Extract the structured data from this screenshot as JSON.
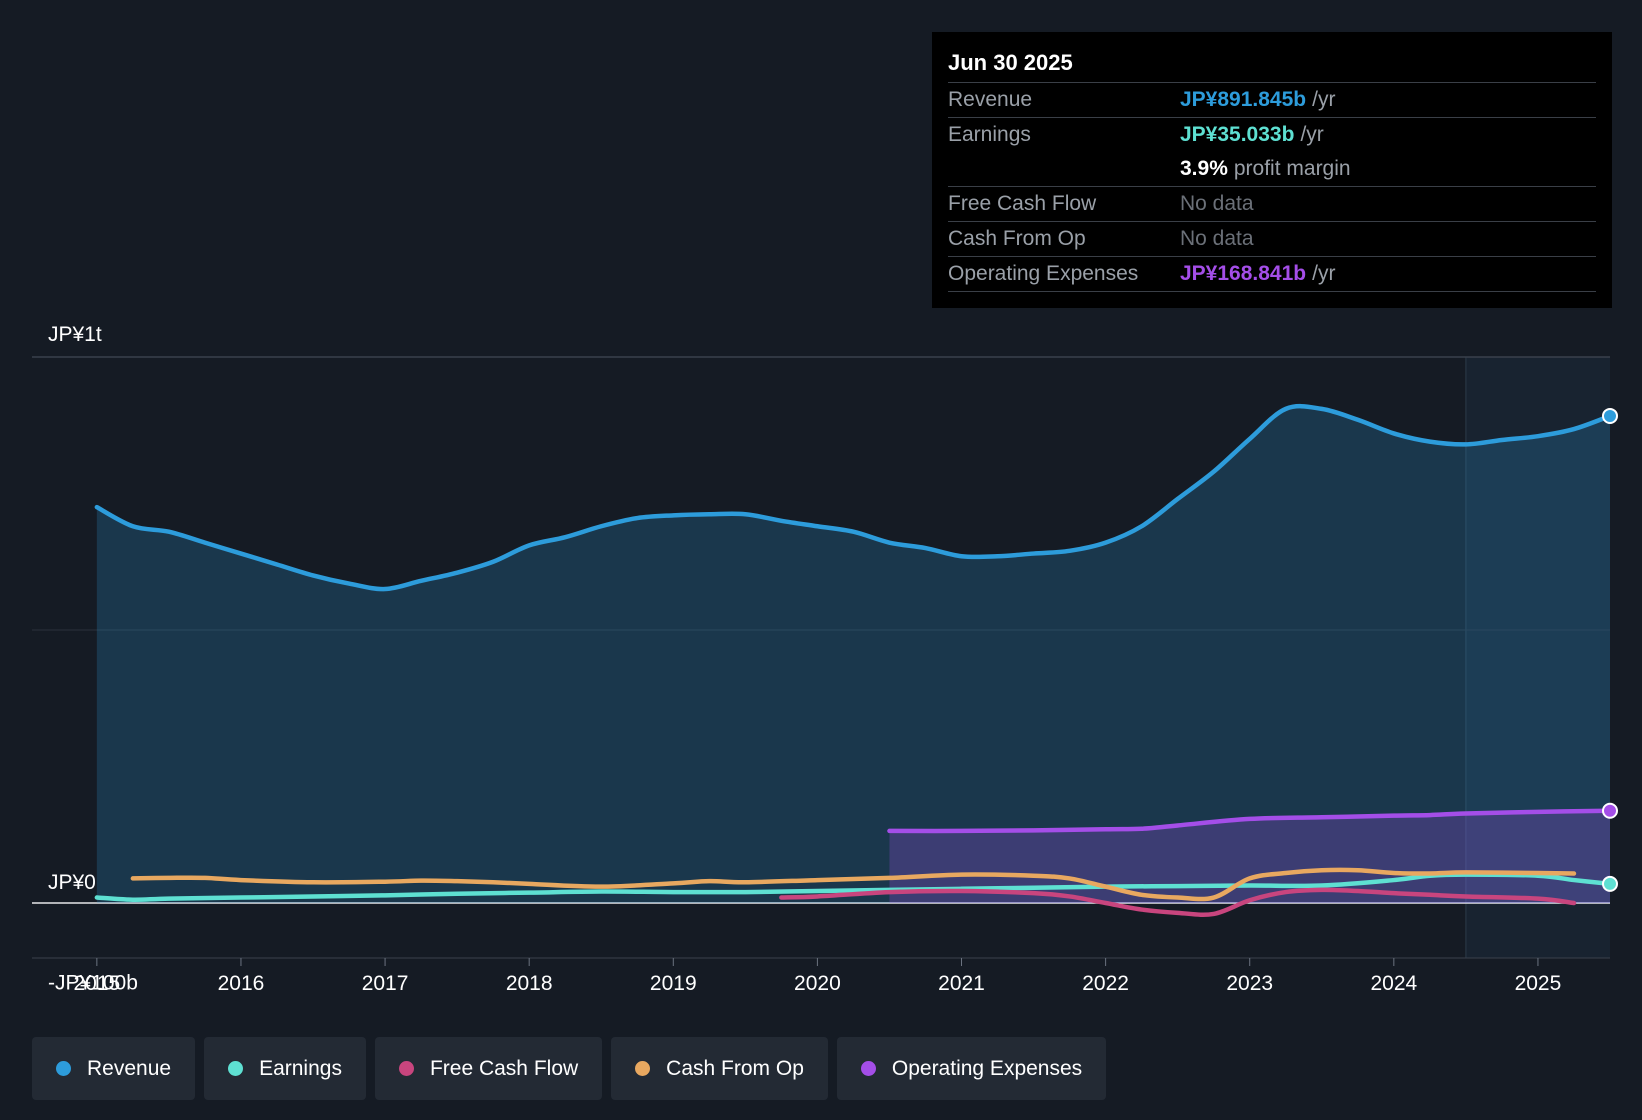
{
  "tooltip": {
    "date": "Jun 30 2025",
    "rows": [
      {
        "label": "Revenue",
        "value": "JP¥891.845b",
        "unit": "/yr",
        "color": "#2d9cdb"
      },
      {
        "label": "Earnings",
        "value": "JP¥35.033b",
        "unit": "/yr",
        "color": "#5ee0d2"
      },
      {
        "label": "",
        "value": "3.9%",
        "unit": "profit margin",
        "color": "#ffffff"
      },
      {
        "label": "Free Cash Flow",
        "value": "No data"
      },
      {
        "label": "Cash From Op",
        "value": "No data"
      },
      {
        "label": "Operating Expenses",
        "value": "JP¥168.841b",
        "unit": "/yr",
        "color": "#a44ee8"
      }
    ]
  },
  "legend": [
    {
      "label": "Revenue",
      "color": "#2d9cdb"
    },
    {
      "label": "Earnings",
      "color": "#5ee0d2"
    },
    {
      "label": "Free Cash Flow",
      "color": "#c8457e"
    },
    {
      "label": "Cash From Op",
      "color": "#e8a860"
    },
    {
      "label": "Operating Expenses",
      "color": "#a44ee8"
    }
  ],
  "chart_data": {
    "type": "line",
    "title": "",
    "xlabel": "",
    "ylabel": "",
    "ylim": [
      -100,
      1000
    ],
    "y_unit": "JP¥ billions",
    "y_tick_labels": [
      "JP¥1t",
      "JP¥0",
      "-JP¥100b"
    ],
    "y_tick_values": [
      1000,
      0,
      -100
    ],
    "x_ticks": [
      "2015",
      "2016",
      "2017",
      "2018",
      "2019",
      "2020",
      "2021",
      "2022",
      "2023",
      "2024",
      "2025"
    ],
    "x_tick_values": [
      2015,
      2016,
      2017,
      2018,
      2019,
      2020,
      2021,
      2022,
      2023,
      2024,
      2025
    ],
    "xlim": [
      2014.55,
      2025.5
    ],
    "forecast_start": 2024.5,
    "series": [
      {
        "name": "Revenue",
        "color": "#2d9cdb",
        "fill": true,
        "x": [
          2015.0,
          2015.25,
          2015.5,
          2015.75,
          2016.0,
          2016.25,
          2016.5,
          2016.75,
          2017.0,
          2017.25,
          2017.5,
          2017.75,
          2018.0,
          2018.25,
          2018.5,
          2018.75,
          2019.0,
          2019.25,
          2019.5,
          2019.75,
          2020.0,
          2020.25,
          2020.5,
          2020.75,
          2021.0,
          2021.25,
          2021.5,
          2021.75,
          2022.0,
          2022.25,
          2022.5,
          2022.75,
          2023.0,
          2023.25,
          2023.5,
          2023.75,
          2024.0,
          2024.25,
          2024.5,
          2024.75,
          2025.0,
          2025.25,
          2025.5
        ],
        "values": [
          725,
          690,
          680,
          660,
          640,
          620,
          600,
          585,
          575,
          590,
          605,
          625,
          655,
          670,
          690,
          705,
          710,
          712,
          712,
          700,
          690,
          680,
          660,
          650,
          635,
          635,
          640,
          645,
          660,
          690,
          740,
          790,
          850,
          905,
          905,
          885,
          860,
          845,
          840,
          848,
          855,
          868,
          892
        ]
      },
      {
        "name": "Earnings",
        "color": "#5ee0d2",
        "fill": false,
        "x": [
          2015.0,
          2015.25,
          2015.5,
          2016.0,
          2016.5,
          2017.0,
          2017.5,
          2018.0,
          2018.5,
          2019.0,
          2019.5,
          2020.0,
          2020.5,
          2021.0,
          2021.5,
          2022.0,
          2022.5,
          2023.0,
          2023.5,
          2024.0,
          2024.25,
          2024.5,
          2025.0,
          2025.25,
          2025.5
        ],
        "values": [
          10,
          6,
          8,
          10,
          12,
          14,
          17,
          19,
          21,
          20,
          20,
          22,
          24,
          26,
          28,
          30,
          31,
          32,
          32,
          42,
          50,
          52,
          50,
          42,
          35
        ]
      },
      {
        "name": "Free Cash Flow",
        "color": "#c8457e",
        "fill": false,
        "x": [
          2019.75,
          2020.0,
          2020.5,
          2021.0,
          2021.5,
          2021.75,
          2022.0,
          2022.25,
          2022.5,
          2022.75,
          2023.0,
          2023.25,
          2023.5,
          2023.75,
          2024.0,
          2024.25,
          2024.5,
          2025.0,
          2025.25
        ],
        "values": [
          10,
          12,
          20,
          22,
          18,
          12,
          0,
          -12,
          -18,
          -20,
          5,
          20,
          24,
          22,
          18,
          15,
          12,
          8,
          0
        ]
      },
      {
        "name": "Cash From Op",
        "color": "#e8a860",
        "fill": false,
        "x": [
          2015.25,
          2015.5,
          2015.75,
          2016.0,
          2016.5,
          2017.0,
          2017.25,
          2017.5,
          2017.75,
          2018.0,
          2018.5,
          2019.0,
          2019.25,
          2019.5,
          2020.0,
          2020.5,
          2021.0,
          2021.5,
          2021.75,
          2022.0,
          2022.25,
          2022.5,
          2022.75,
          2023.0,
          2023.25,
          2023.5,
          2023.75,
          2024.0,
          2024.25,
          2024.5,
          2025.0,
          2025.25
        ],
        "values": [
          45,
          46,
          46,
          42,
          38,
          39,
          41,
          40,
          38,
          35,
          30,
          36,
          40,
          38,
          42,
          46,
          52,
          50,
          45,
          30,
          15,
          10,
          10,
          45,
          55,
          60,
          60,
          55,
          54,
          56,
          55,
          54
        ]
      },
      {
        "name": "Operating Expenses",
        "color": "#a44ee8",
        "fill": true,
        "x": [
          2020.5,
          2021.0,
          2021.5,
          2022.0,
          2022.25,
          2022.5,
          2023.0,
          2023.5,
          2024.0,
          2024.25,
          2024.5,
          2025.0,
          2025.5
        ],
        "values": [
          132,
          132,
          133,
          135,
          136,
          142,
          154,
          157,
          160,
          161,
          164,
          167,
          169
        ]
      }
    ]
  }
}
